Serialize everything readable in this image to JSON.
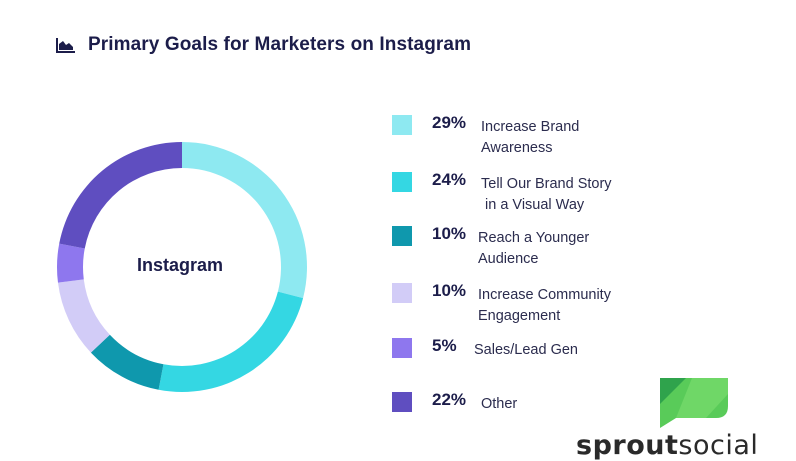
{
  "header": {
    "title": "Primary Goals for Marketers on Instagram",
    "icon": "area-chart-icon"
  },
  "chart_data": {
    "type": "pie",
    "variant": "donut",
    "center_label": "Instagram",
    "slices": [
      {
        "pct_label": "29%",
        "value": 29,
        "label_lines": [
          "Increase Brand",
          "Awareness"
        ],
        "color": "#8ee9f1"
      },
      {
        "pct_label": "24%",
        "value": 24,
        "label_lines": [
          "Tell Our Brand Story",
          "in a Visual Way"
        ],
        "color": "#34d7e3"
      },
      {
        "pct_label": "10%",
        "value": 10,
        "label_lines": [
          "Reach a Younger",
          "Audience"
        ],
        "color": "#0f98ad"
      },
      {
        "pct_label": "10%",
        "value": 10,
        "label_lines": [
          "Increase Community",
          "Engagement"
        ],
        "color": "#d2ccf7"
      },
      {
        "pct_label": "5%",
        "value": 5,
        "label_lines": [
          "Sales/Lead Gen"
        ],
        "color": "#8e77ee"
      },
      {
        "pct_label": "22%",
        "value": 22,
        "label_lines": [
          "Other"
        ],
        "color": "#5f4ec0"
      }
    ],
    "legend_position": "right"
  },
  "brand": {
    "logo_text_bold": "sprout",
    "logo_text_light": "social",
    "icon": "sprout-social-logo-icon",
    "accent": "#59cb59"
  }
}
